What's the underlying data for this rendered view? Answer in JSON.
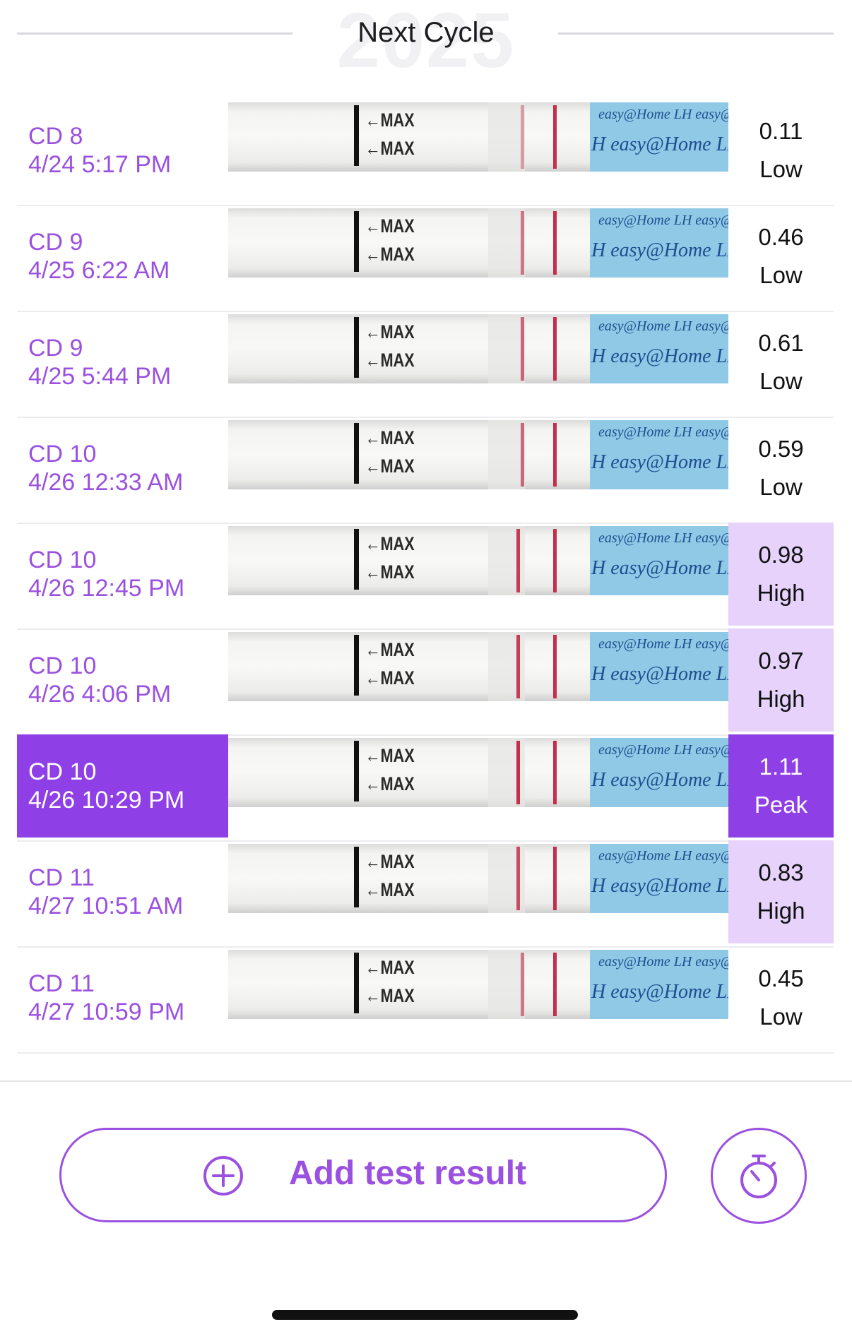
{
  "header": {
    "year": "2025",
    "title": "Next Cycle"
  },
  "strip_labels": {
    "max": "←MAX",
    "brand_top": "easy@Home LH easy@",
    "brand_bottom": "H easy@Home LH e"
  },
  "results": [
    {
      "cd": "CD 8",
      "datetime": "4/24 5:17 PM",
      "value": "0.11",
      "level": "Low"
    },
    {
      "cd": "CD 9",
      "datetime": "4/25 6:22 AM",
      "value": "0.46",
      "level": "Low"
    },
    {
      "cd": "CD 9",
      "datetime": "4/25 5:44 PM",
      "value": "0.61",
      "level": "Low"
    },
    {
      "cd": "CD 10",
      "datetime": "4/26 12:33 AM",
      "value": "0.59",
      "level": "Low"
    },
    {
      "cd": "CD 10",
      "datetime": "4/26 12:45 PM",
      "value": "0.98",
      "level": "High"
    },
    {
      "cd": "CD 10",
      "datetime": "4/26 4:06 PM",
      "value": "0.97",
      "level": "High"
    },
    {
      "cd": "CD 10",
      "datetime": "4/26 10:29 PM",
      "value": "1.11",
      "level": "Peak"
    },
    {
      "cd": "CD 11",
      "datetime": "4/27 10:51 AM",
      "value": "0.83",
      "level": "High"
    },
    {
      "cd": "CD 11",
      "datetime": "4/27 10:59 PM",
      "value": "0.45",
      "level": "Low"
    }
  ],
  "actions": {
    "add_label": "Add test result",
    "add_icon": "plus-circle-icon",
    "timer_icon": "stopwatch-icon"
  },
  "colors": {
    "accent": "#9b51e0",
    "selected_bg": "#8f3fe6",
    "high_bg": "#e6d2fb",
    "test_line": "#c2304e"
  }
}
